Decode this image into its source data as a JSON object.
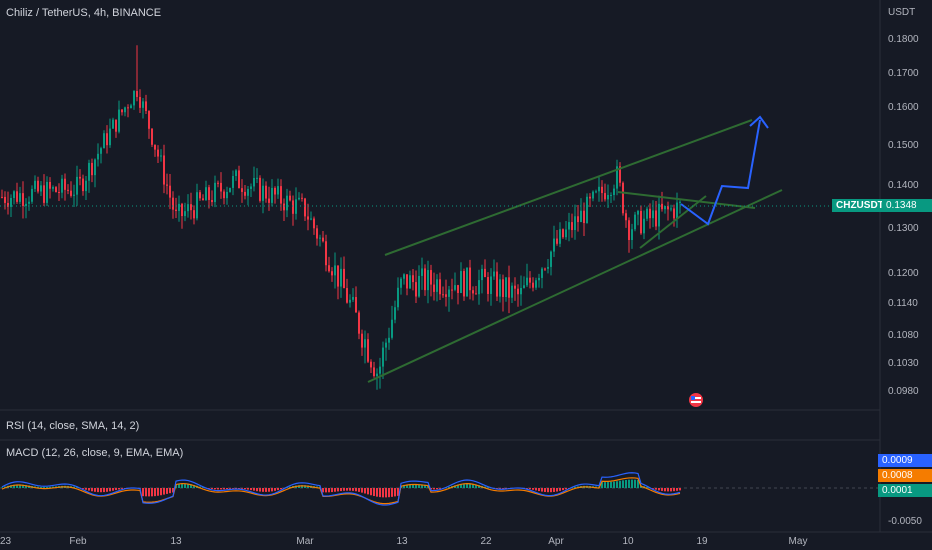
{
  "header": {
    "symbol_line": "Chiliz / TetherUS, 4h, BINANCE"
  },
  "price_axis": {
    "unit": "USDT",
    "ticks": [
      "0.1800",
      "0.1700",
      "0.1600",
      "0.1500",
      "0.1400",
      "0.1300",
      "0.1200",
      "0.1140",
      "0.1080",
      "0.1030",
      "0.0980"
    ]
  },
  "last_price": {
    "label": "CHZUSDT",
    "value": "0.1348"
  },
  "time_axis": {
    "ticks": [
      "23",
      "Feb",
      "13",
      "Mar",
      "13",
      "22",
      "Apr",
      "10",
      "19",
      "May"
    ]
  },
  "rsi": {
    "title": "RSI (14, close, SMA, 14, 2)"
  },
  "macd": {
    "title": "MACD (12, 26, close, 9, EMA, EMA)",
    "ticks": [
      "-0.0050"
    ],
    "value_tags": [
      {
        "value": "0.0009",
        "color": "#2962ff"
      },
      {
        "value": "0.0008",
        "color": "#f57c00"
      },
      {
        "value": "0.0001",
        "color": "#089981"
      }
    ]
  },
  "colors": {
    "background": "#161a25",
    "up": "#089981",
    "down": "#f23645",
    "channel": "#2e6b32",
    "projection": "#2962ff"
  },
  "chart_data": {
    "type": "candlestick",
    "symbol": "CHZUSDT",
    "timeframe": "4h",
    "ylim": [
      0.094,
      0.19
    ],
    "close_path": [
      {
        "t": "23",
        "close": 0.137
      },
      {
        "t": "Feb",
        "close": 0.139
      },
      {
        "t": "Feb 8",
        "close": 0.165
      },
      {
        "t": "13",
        "close": 0.132
      },
      {
        "t": "Feb 20",
        "close": 0.141
      },
      {
        "t": "Mar",
        "close": 0.134
      },
      {
        "t": "Mar 9",
        "close": 0.101
      },
      {
        "t": "13",
        "close": 0.118
      },
      {
        "t": "22",
        "close": 0.118
      },
      {
        "t": "Mar 27",
        "close": 0.115
      },
      {
        "t": "Apr",
        "close": 0.126
      },
      {
        "t": "Apr 8",
        "close": 0.142
      },
      {
        "t": "10",
        "close": 0.13
      },
      {
        "t": "Apr 15",
        "close": 0.1348
      }
    ],
    "projection": [
      {
        "t": "Apr 15",
        "price": 0.1348
      },
      {
        "t": "Apr 18",
        "price": 0.131
      },
      {
        "t": "Apr 19",
        "price": 0.139
      },
      {
        "t": "Apr 22",
        "price": 0.139
      },
      {
        "t": "Apr 25",
        "price": 0.157
      }
    ]
  }
}
